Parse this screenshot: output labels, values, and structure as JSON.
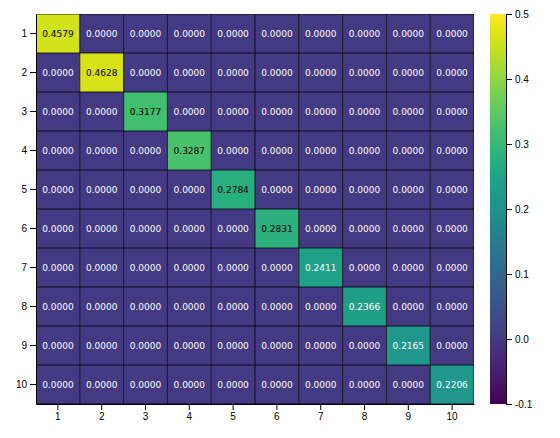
{
  "chart_data": {
    "type": "heatmap",
    "x_categories": [
      "1",
      "2",
      "3",
      "4",
      "5",
      "6",
      "7",
      "8",
      "9",
      "10"
    ],
    "y_categories": [
      "1",
      "2",
      "3",
      "4",
      "5",
      "6",
      "7",
      "8",
      "9",
      "10"
    ],
    "values": [
      [
        0.4579,
        0.0,
        0.0,
        0.0,
        0.0,
        0.0,
        0.0,
        0.0,
        0.0,
        0.0
      ],
      [
        0.0,
        0.4628,
        0.0,
        0.0,
        0.0,
        0.0,
        0.0,
        0.0,
        0.0,
        0.0
      ],
      [
        0.0,
        0.0,
        0.3177,
        0.0,
        0.0,
        0.0,
        0.0,
        0.0,
        0.0,
        0.0
      ],
      [
        0.0,
        0.0,
        0.0,
        0.3287,
        0.0,
        0.0,
        0.0,
        0.0,
        0.0,
        0.0
      ],
      [
        0.0,
        0.0,
        0.0,
        0.0,
        0.2784,
        0.0,
        0.0,
        0.0,
        0.0,
        0.0
      ],
      [
        0.0,
        0.0,
        0.0,
        0.0,
        0.0,
        0.2831,
        0.0,
        0.0,
        0.0,
        0.0
      ],
      [
        0.0,
        0.0,
        0.0,
        0.0,
        0.0,
        0.0,
        0.2411,
        0.0,
        0.0,
        0.0
      ],
      [
        0.0,
        0.0,
        0.0,
        0.0,
        0.0,
        0.0,
        0.0,
        0.2366,
        0.0,
        0.0
      ],
      [
        0.0,
        0.0,
        0.0,
        0.0,
        0.0,
        0.0,
        0.0,
        0.0,
        0.2165,
        0.0
      ],
      [
        0.0,
        0.0,
        0.0,
        0.0,
        0.0,
        0.0,
        0.0,
        0.0,
        0.0,
        0.2206
      ]
    ],
    "value_labels": [
      [
        "0.4579",
        "0.0000",
        "0.0000",
        "0.0000",
        "0.0000",
        "0.0000",
        "0.0000",
        "0.0000",
        "0.0000",
        "0.0000"
      ],
      [
        "0.0000",
        "0.4628",
        "0.0000",
        "0.0000",
        "0.0000",
        "0.0000",
        "0.0000",
        "0.0000",
        "0.0000",
        "0.0000"
      ],
      [
        "0.0000",
        "0.0000",
        "0.3177",
        "0.0000",
        "0.0000",
        "0.0000",
        "0.0000",
        "0.0000",
        "0.0000",
        "0.0000"
      ],
      [
        "0.0000",
        "0.0000",
        "0.0000",
        "0.3287",
        "0.0000",
        "0.0000",
        "0.0000",
        "0.0000",
        "0.0000",
        "0.0000"
      ],
      [
        "0.0000",
        "0.0000",
        "0.0000",
        "0.0000",
        "0.2784",
        "0.0000",
        "0.0000",
        "0.0000",
        "0.0000",
        "0.0000"
      ],
      [
        "0.0000",
        "0.0000",
        "0.0000",
        "0.0000",
        "0.0000",
        "0.2831",
        "0.0000",
        "0.0000",
        "0.0000",
        "0.0000"
      ],
      [
        "0.0000",
        "0.0000",
        "0.0000",
        "0.0000",
        "0.0000",
        "0.0000",
        "0.2411",
        "0.0000",
        "0.0000",
        "0.0000"
      ],
      [
        "0.0000",
        "0.0000",
        "0.0000",
        "0.0000",
        "0.0000",
        "0.0000",
        "0.0000",
        "0.2366",
        "0.0000",
        "0.0000"
      ],
      [
        "0.0000",
        "0.0000",
        "0.0000",
        "0.0000",
        "0.0000",
        "0.0000",
        "0.0000",
        "0.0000",
        "0.2165",
        "0.0000"
      ],
      [
        "0.0000",
        "0.0000",
        "0.0000",
        "0.0000",
        "0.0000",
        "0.0000",
        "0.0000",
        "0.0000",
        "0.0000",
        "0.2206"
      ]
    ],
    "data_labels": true,
    "grid": true,
    "colorbar": {
      "range": [
        -0.1,
        0.5
      ],
      "ticks": [
        -0.1,
        {
          "value": 0.0,
          "label": "0.0"
        },
        0.1,
        0.2,
        0.3,
        0.4,
        0.5
      ]
    }
  }
}
